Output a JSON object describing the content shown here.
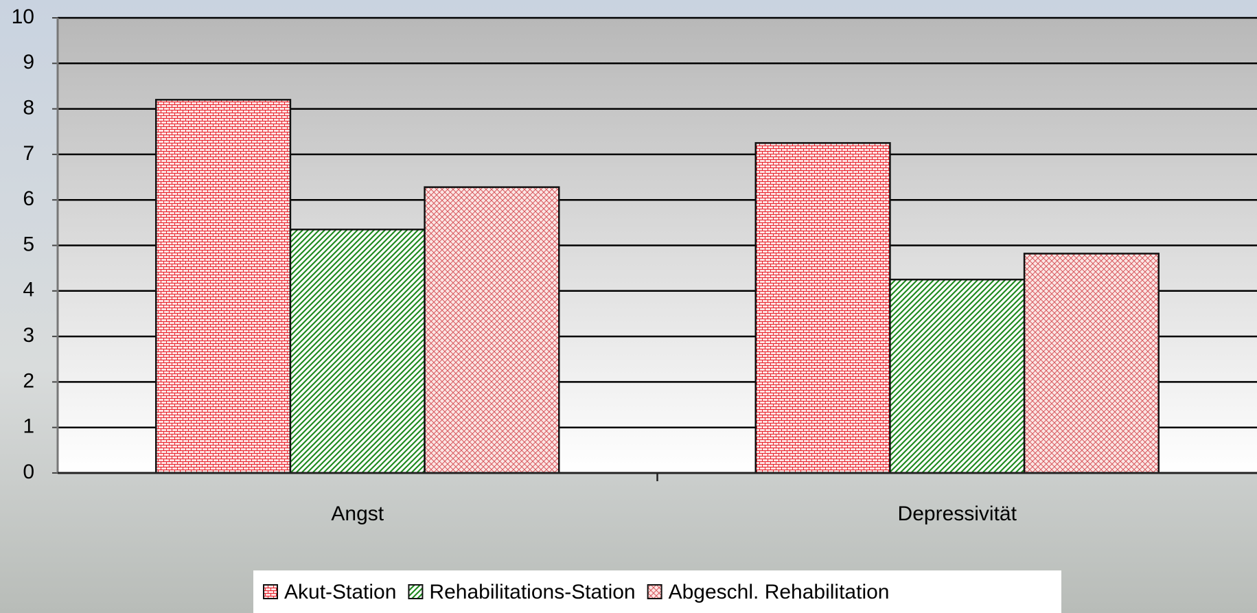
{
  "chart_data": {
    "type": "bar",
    "categories": [
      "Angst",
      "Depressivität"
    ],
    "series": [
      {
        "name": "Akut-Station",
        "color": "#e8202a",
        "values": [
          8.2,
          7.25
        ]
      },
      {
        "name": "Rehabilitations-Station",
        "color": "#1f8a1f",
        "values": [
          5.35,
          4.25
        ]
      },
      {
        "name": "Abgeschl. Rehabilitation",
        "color": "#d8585e",
        "values": [
          6.28,
          4.82
        ]
      }
    ],
    "ylim": [
      0,
      10
    ],
    "yticks": [
      0,
      1,
      2,
      3,
      4,
      5,
      6,
      7,
      8,
      9,
      10
    ],
    "grid": true
  }
}
